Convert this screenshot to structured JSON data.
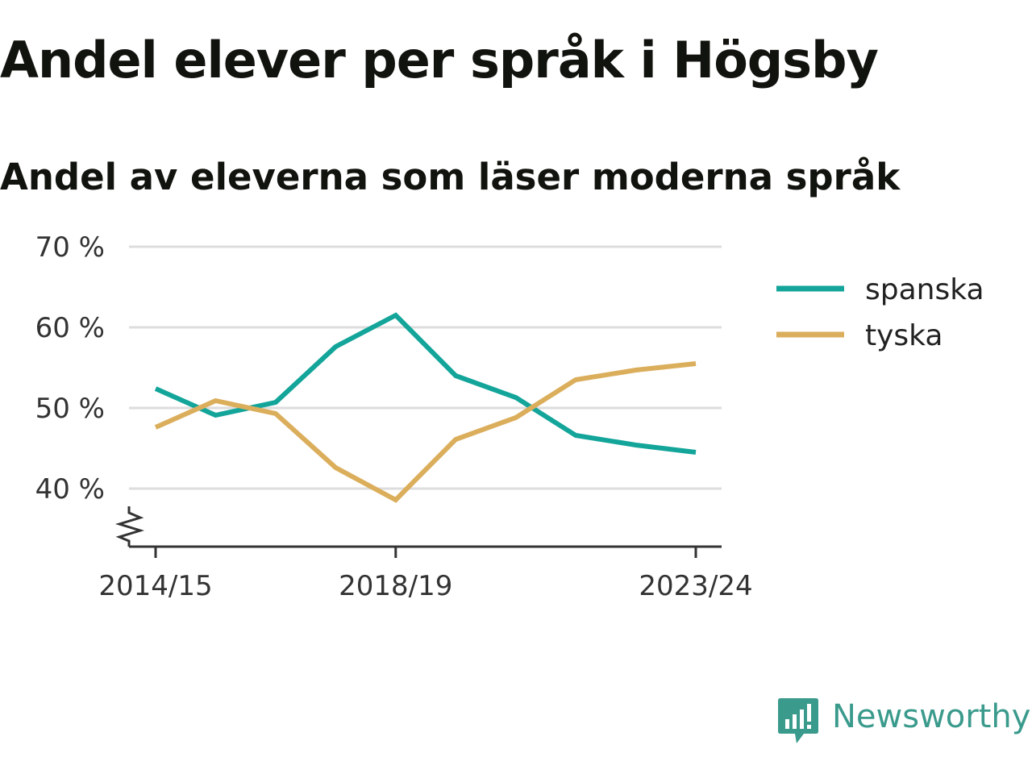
{
  "title": "Andel elever per språk i Högsby",
  "subtitle": "Andel av eleverna som läser moderna språk",
  "colors": {
    "spanska": "#13a59a",
    "tyska": "#dbae5c",
    "grid": "#dddddd",
    "axis": "#333333",
    "brand": "#3a9a8c"
  },
  "brand": {
    "name": "Newsworthy",
    "icon": "newsworthy-bar-chart-logo-icon"
  },
  "chart_data": {
    "type": "line",
    "x": [
      "2014/15",
      "2015/16",
      "2016/17",
      "2017/18",
      "2018/19",
      "2019/20",
      "2020/21",
      "2021/22",
      "2022/23",
      "2023/24"
    ],
    "x_tick_labels": [
      "2014/15",
      "2018/19",
      "2023/24"
    ],
    "y_ticks": [
      40,
      50,
      60,
      70
    ],
    "y_tick_labels": [
      "40 %",
      "50 %",
      "60 %",
      "70 %"
    ],
    "ylim": [
      33,
      70
    ],
    "y_axis_break": true,
    "grid": true,
    "legend_position": "right",
    "series": [
      {
        "name": "spanska",
        "color": "#13a59a",
        "values": [
          52.4,
          49.1,
          50.7,
          57.6,
          61.5,
          54.0,
          51.3,
          46.6,
          45.4,
          44.5
        ]
      },
      {
        "name": "tyska",
        "color": "#dbae5c",
        "values": [
          47.6,
          50.9,
          49.3,
          42.6,
          38.6,
          46.1,
          48.8,
          53.5,
          54.7,
          55.5
        ]
      }
    ]
  }
}
